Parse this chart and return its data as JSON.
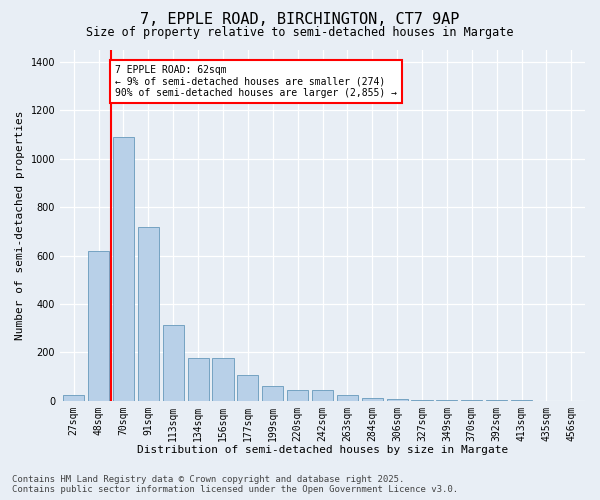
{
  "title": "7, EPPLE ROAD, BIRCHINGTON, CT7 9AP",
  "subtitle": "Size of property relative to semi-detached houses in Margate",
  "xlabel": "Distribution of semi-detached houses by size in Margate",
  "ylabel": "Number of semi-detached properties",
  "categories": [
    "27sqm",
    "48sqm",
    "70sqm",
    "91sqm",
    "113sqm",
    "134sqm",
    "156sqm",
    "177sqm",
    "199sqm",
    "220sqm",
    "242sqm",
    "263sqm",
    "284sqm",
    "306sqm",
    "327sqm",
    "349sqm",
    "370sqm",
    "392sqm",
    "413sqm",
    "435sqm",
    "456sqm"
  ],
  "values": [
    22,
    620,
    1090,
    720,
    315,
    175,
    175,
    105,
    60,
    45,
    45,
    22,
    12,
    8,
    5,
    3,
    2,
    2,
    1,
    0,
    0
  ],
  "bar_color": "#b8d0e8",
  "bar_edge_color": "#6699bb",
  "vline_color": "red",
  "vline_pos": 1.5,
  "annotation_text": "7 EPPLE ROAD: 62sqm\n← 9% of semi-detached houses are smaller (274)\n90% of semi-detached houses are larger (2,855) →",
  "annotation_box_color": "white",
  "annotation_box_edgecolor": "red",
  "ylim": [
    0,
    1450
  ],
  "yticks": [
    0,
    200,
    400,
    600,
    800,
    1000,
    1200,
    1400
  ],
  "bg_color": "#e8eef5",
  "plot_bg_color": "#e8eef5",
  "footer": "Contains HM Land Registry data © Crown copyright and database right 2025.\nContains public sector information licensed under the Open Government Licence v3.0.",
  "title_fontsize": 11,
  "subtitle_fontsize": 8.5,
  "xlabel_fontsize": 8,
  "ylabel_fontsize": 8,
  "tick_fontsize": 7,
  "footer_fontsize": 6.5
}
